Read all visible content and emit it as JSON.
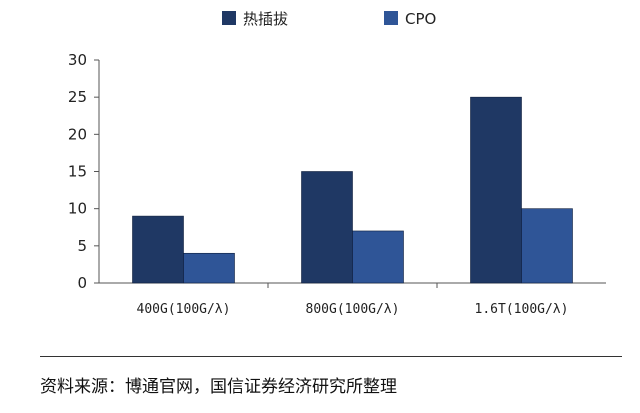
{
  "chart_data": {
    "type": "bar",
    "categories": [
      "400G(100G/λ)",
      "800G(100G/λ)",
      "1.6T(100G/λ)"
    ],
    "series": [
      {
        "name": "热插拔",
        "values": [
          9,
          15,
          25
        ],
        "color": "#1f3864"
      },
      {
        "name": "CPO",
        "values": [
          4,
          7,
          10
        ],
        "color": "#2f5597"
      }
    ],
    "ylim": [
      0,
      30
    ],
    "yticks": [
      0,
      5,
      10,
      15,
      20,
      25,
      30
    ],
    "legend_position": "top",
    "grid": false
  },
  "source_note": "资料来源：博通官网，国信证券经济研究所整理"
}
